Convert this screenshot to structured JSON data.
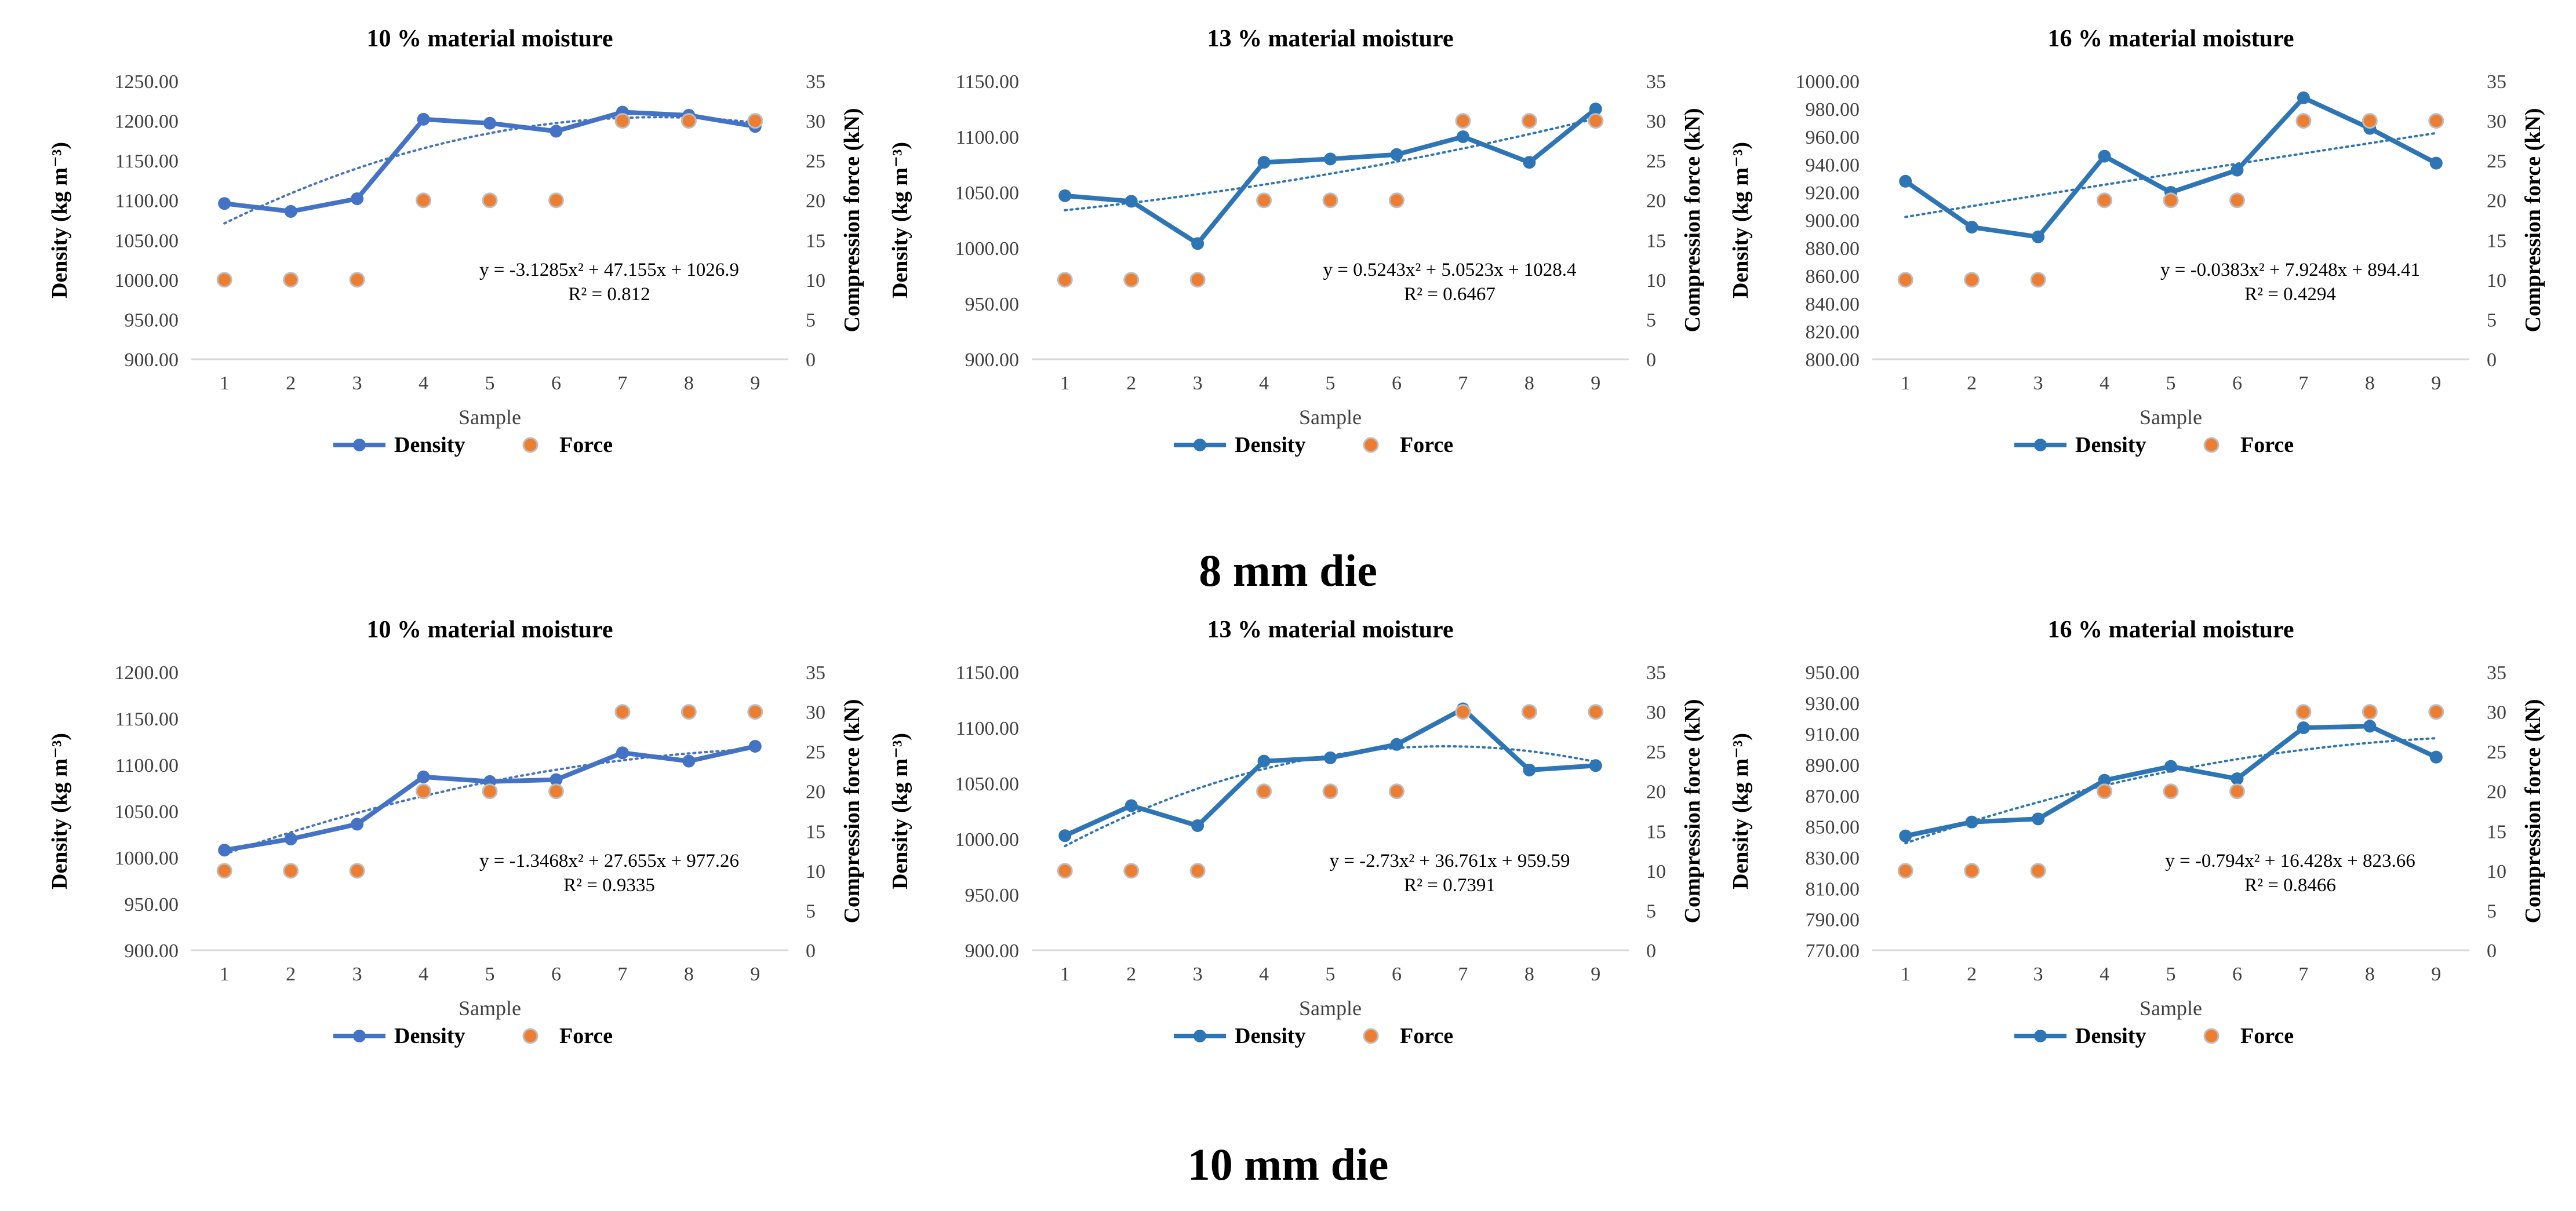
{
  "figure": {
    "caption_top": "8 mm die",
    "caption_bottom": "10 mm die",
    "colors": {
      "density": "#2E75B6",
      "density_alt": "#4472C4",
      "force": "#ED7D31",
      "force_edge": "#BDBDBD",
      "axis": "#595959",
      "grid": "#D9D9D9"
    }
  },
  "chart_data": [
    {
      "type": "line",
      "group": "8 mm die",
      "title": "10 % material moisture",
      "xlabel": "Sample",
      "ylabel": "Density (kg m⁻³)",
      "y2label": "Compression force (kN)",
      "categories": [
        "1",
        "2",
        "3",
        "4",
        "5",
        "6",
        "7",
        "8",
        "9"
      ],
      "ylim": [
        900,
        1250
      ],
      "yticks": [
        "900.00",
        "950.00",
        "1000.00",
        "1050.00",
        "1100.00",
        "1150.00",
        "1200.00",
        "1250.00"
      ],
      "y2lim": [
        0,
        35
      ],
      "y2ticks": [
        "0",
        "5",
        "10",
        "15",
        "20",
        "25",
        "30",
        "35"
      ],
      "series": [
        {
          "name": "Density",
          "axis": "left",
          "kind": "line",
          "values": [
            1096,
            1086,
            1102,
            1202,
            1197,
            1187,
            1211,
            1207,
            1193
          ]
        },
        {
          "name": "Force",
          "axis": "right",
          "kind": "scatter",
          "values": [
            10,
            10,
            10,
            20,
            20,
            20,
            30,
            30,
            30
          ]
        }
      ],
      "trendline": {
        "a": -3.1285,
        "b": 47.155,
        "c": 1026.9
      },
      "equation": "y = -3.1285x² + 47.155x + 1026.9",
      "r2": "R² = 0.812",
      "legend": [
        "Density",
        "Force"
      ]
    },
    {
      "type": "line",
      "group": "8 mm die",
      "title": "13 % material moisture",
      "xlabel": "Sample",
      "ylabel": "Density (kg m⁻³)",
      "y2label": "Compression force (kN)",
      "categories": [
        "1",
        "2",
        "3",
        "4",
        "5",
        "6",
        "7",
        "8",
        "9"
      ],
      "ylim": [
        900,
        1150
      ],
      "yticks": [
        "900.00",
        "950.00",
        "1000.00",
        "1050.00",
        "1100.00",
        "1150.00"
      ],
      "y2lim": [
        0,
        35
      ],
      "y2ticks": [
        "0",
        "5",
        "10",
        "15",
        "20",
        "25",
        "30",
        "35"
      ],
      "series": [
        {
          "name": "Density",
          "axis": "left",
          "kind": "line",
          "values": [
            1047,
            1042,
            1004,
            1077,
            1080,
            1084,
            1100,
            1077,
            1125
          ]
        },
        {
          "name": "Force",
          "axis": "right",
          "kind": "scatter",
          "values": [
            10,
            10,
            10,
            20,
            20,
            20,
            30,
            30,
            30
          ]
        }
      ],
      "trendline": {
        "a": 0.5243,
        "b": 5.0523,
        "c": 1028.4
      },
      "equation": "y = 0.5243x² + 5.0523x + 1028.4",
      "r2": "R² = 0.6467",
      "legend": [
        "Density",
        "Force"
      ]
    },
    {
      "type": "line",
      "group": "8 mm die",
      "title": "16 % material moisture",
      "xlabel": "Sample",
      "ylabel": "Density (kg m⁻³)",
      "y2label": "Compression force (kN)",
      "categories": [
        "1",
        "2",
        "3",
        "4",
        "5",
        "6",
        "7",
        "8",
        "9"
      ],
      "ylim": [
        800,
        1000
      ],
      "yticks": [
        "800.00",
        "820.00",
        "840.00",
        "860.00",
        "880.00",
        "900.00",
        "920.00",
        "940.00",
        "960.00",
        "980.00",
        "1000.00"
      ],
      "y2lim": [
        0,
        35
      ],
      "y2ticks": [
        "0",
        "5",
        "10",
        "15",
        "20",
        "25",
        "30",
        "35"
      ],
      "series": [
        {
          "name": "Density",
          "axis": "left",
          "kind": "line",
          "values": [
            928,
            895,
            888,
            946,
            920,
            936,
            988,
            966,
            941
          ]
        },
        {
          "name": "Force",
          "axis": "right",
          "kind": "scatter",
          "values": [
            10,
            10,
            10,
            20,
            20,
            20,
            30,
            30,
            30
          ]
        }
      ],
      "trendline": {
        "a": -0.0383,
        "b": 7.9248,
        "c": 894.41
      },
      "equation": "y = -0.0383x² + 7.9248x + 894.41",
      "r2": "R² = 0.4294",
      "legend": [
        "Density",
        "Force"
      ]
    },
    {
      "type": "line",
      "group": "10 mm die",
      "title": "10 % material moisture",
      "xlabel": "Sample",
      "ylabel": "Density (kg m⁻³)",
      "y2label": "Compression force (kN)",
      "categories": [
        "1",
        "2",
        "3",
        "4",
        "5",
        "6",
        "7",
        "8",
        "9"
      ],
      "ylim": [
        900,
        1200
      ],
      "yticks": [
        "900.00",
        "950.00",
        "1000.00",
        "1050.00",
        "1100.00",
        "1150.00",
        "1200.00"
      ],
      "y2lim": [
        0,
        35
      ],
      "y2ticks": [
        "0",
        "5",
        "10",
        "15",
        "20",
        "25",
        "30",
        "35"
      ],
      "series": [
        {
          "name": "Density",
          "axis": "left",
          "kind": "line",
          "values": [
            1008,
            1020,
            1036,
            1087,
            1082,
            1084,
            1113,
            1104,
            1120
          ]
        },
        {
          "name": "Force",
          "axis": "right",
          "kind": "scatter",
          "values": [
            10,
            10,
            10,
            20,
            20,
            20,
            30,
            30,
            30
          ]
        }
      ],
      "trendline": {
        "a": -1.3468,
        "b": 27.655,
        "c": 977.26
      },
      "equation": "y = -1.3468x² + 27.655x + 977.26",
      "r2": "R² = 0.9335",
      "legend": [
        "Density",
        "Force"
      ]
    },
    {
      "type": "line",
      "group": "10 mm die",
      "title": "13 % material moisture",
      "xlabel": "Sample",
      "ylabel": "Density (kg m⁻³)",
      "y2label": "Compression force (kN)",
      "categories": [
        "1",
        "2",
        "3",
        "4",
        "5",
        "6",
        "7",
        "8",
        "9"
      ],
      "ylim": [
        900,
        1150
      ],
      "yticks": [
        "900.00",
        "950.00",
        "1000.00",
        "1050.00",
        "1100.00",
        "1150.00"
      ],
      "y2lim": [
        0,
        35
      ],
      "y2ticks": [
        "0",
        "5",
        "10",
        "15",
        "20",
        "25",
        "30",
        "35"
      ],
      "series": [
        {
          "name": "Density",
          "axis": "left",
          "kind": "line",
          "values": [
            1003,
            1030,
            1012,
            1070,
            1073,
            1085,
            1117,
            1062,
            1066
          ]
        },
        {
          "name": "Force",
          "axis": "right",
          "kind": "scatter",
          "values": [
            10,
            10,
            10,
            20,
            20,
            20,
            30,
            30,
            30
          ]
        }
      ],
      "trendline": {
        "a": -2.73,
        "b": 36.761,
        "c": 959.59
      },
      "equation": "y = -2.73x² + 36.761x + 959.59",
      "r2": "R² = 0.7391",
      "legend": [
        "Density",
        "Force"
      ]
    },
    {
      "type": "line",
      "group": "10 mm die",
      "title": "16 % material moisture",
      "xlabel": "Sample",
      "ylabel": "Density (kg m⁻³)",
      "y2label": "Compression force (kN)",
      "categories": [
        "1",
        "2",
        "3",
        "4",
        "5",
        "6",
        "7",
        "8",
        "9"
      ],
      "ylim": [
        770,
        950
      ],
      "yticks": [
        "770.00",
        "790.00",
        "810.00",
        "830.00",
        "850.00",
        "870.00",
        "890.00",
        "910.00",
        "930.00",
        "950.00"
      ],
      "y2lim": [
        0,
        35
      ],
      "y2ticks": [
        "0",
        "5",
        "10",
        "15",
        "20",
        "25",
        "30",
        "35"
      ],
      "series": [
        {
          "name": "Density",
          "axis": "left",
          "kind": "line",
          "values": [
            844,
            853,
            855,
            880,
            889,
            881,
            914,
            915,
            895
          ]
        },
        {
          "name": "Force",
          "axis": "right",
          "kind": "scatter",
          "values": [
            10,
            10,
            10,
            20,
            20,
            20,
            30,
            30,
            30
          ]
        }
      ],
      "trendline": {
        "a": -0.794,
        "b": 16.428,
        "c": 823.66
      },
      "equation": "y = -0.794x² + 16.428x + 823.66",
      "r2": "R² = 0.8466",
      "legend": [
        "Density",
        "Force"
      ]
    }
  ]
}
